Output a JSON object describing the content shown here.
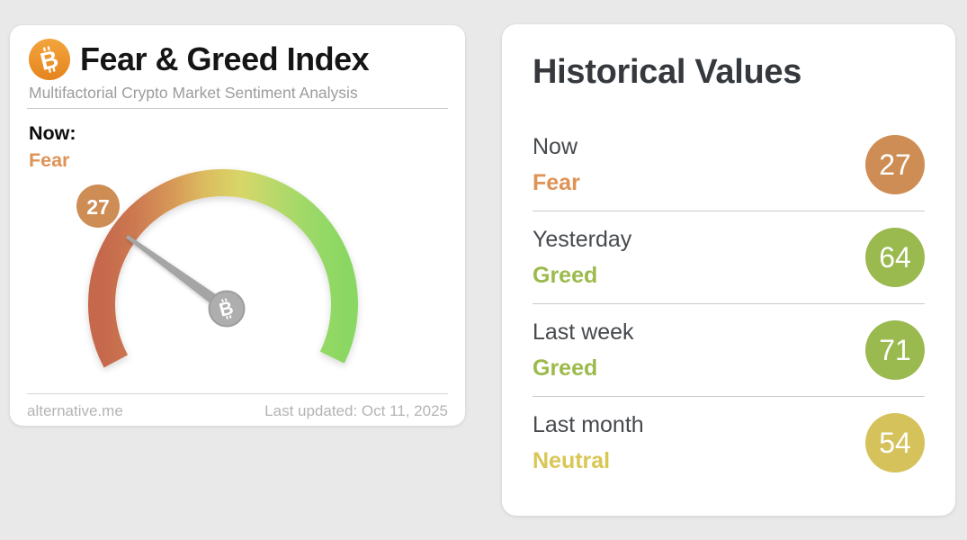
{
  "page": {
    "background_color": "#e9e9e9"
  },
  "index_card": {
    "title": "Fear & Greed Index",
    "subtitle": "Multifactorial Crypto Market Sentiment Analysis",
    "now_label": "Now:",
    "now_sentiment": "Fear",
    "now_sentiment_color": "#df9255",
    "footer_site": "alternative.me",
    "footer_updated": "Last updated: Oct 11, 2025"
  },
  "chart_data": {
    "type": "gauge",
    "title": "Fear & Greed Index",
    "value": 27,
    "value_label": "Fear",
    "min": 0,
    "max": 100,
    "start_angle_deg": 208,
    "sweep_deg": 234,
    "badge_color": "#ce8d55",
    "needle_color": "#a5a5a5",
    "hub_color": "#aeaeae",
    "hub_ring_color": "#9d9d9d",
    "arc_gradient": [
      "#c5684c",
      "#cd7a51",
      "#d79757",
      "#dcbd60",
      "#d8d667",
      "#b8d96b",
      "#9cd968",
      "#8bd763"
    ]
  },
  "historical": {
    "title": "Historical Values",
    "rows": [
      {
        "label": "Now",
        "sentiment": "Fear",
        "value": "27",
        "badge_color": "#ce8d55",
        "sentiment_color": "#df9255"
      },
      {
        "label": "Yesterday",
        "sentiment": "Greed",
        "value": "64",
        "badge_color": "#9ab94f",
        "sentiment_color": "#9cba4b"
      },
      {
        "label": "Last week",
        "sentiment": "Greed",
        "value": "71",
        "badge_color": "#9ab94f",
        "sentiment_color": "#9cba4b"
      },
      {
        "label": "Last month",
        "sentiment": "Neutral",
        "value": "54",
        "badge_color": "#d5c25b",
        "sentiment_color": "#d9c654"
      }
    ]
  }
}
